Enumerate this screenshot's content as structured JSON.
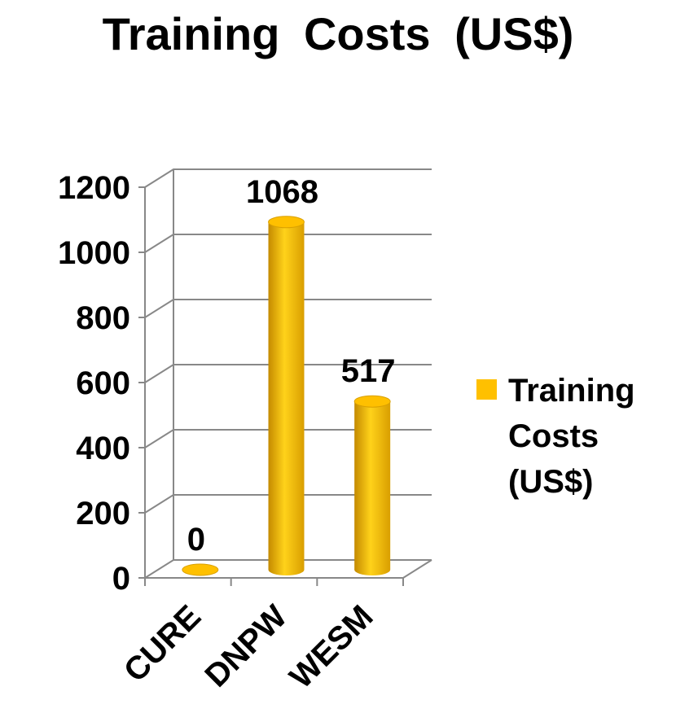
{
  "chart_data": {
    "type": "bar3d",
    "title": "Training Costs (US$)",
    "categories": [
      "CURE",
      "DNPW",
      "WESM"
    ],
    "series": [
      {
        "name": "Training Costs (US$)",
        "color": "#FFC000",
        "values": [
          0,
          1068,
          517
        ]
      }
    ],
    "ylim": [
      0,
      1200
    ],
    "yticks": [
      0,
      200,
      400,
      600,
      800,
      1000,
      1200
    ],
    "grid": true,
    "legend": "right"
  }
}
